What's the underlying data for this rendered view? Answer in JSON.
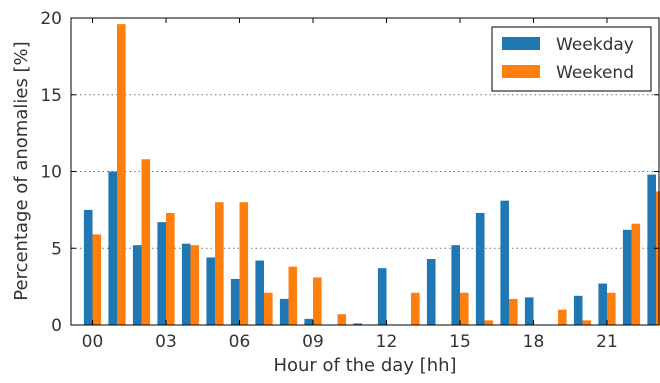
{
  "chart_data": {
    "type": "bar",
    "categories": [
      "00",
      "01",
      "02",
      "03",
      "04",
      "05",
      "06",
      "07",
      "08",
      "09",
      "10",
      "11",
      "12",
      "13",
      "14",
      "15",
      "16",
      "17",
      "18",
      "19",
      "20",
      "21",
      "22",
      "23"
    ],
    "x_tick_labels": [
      "00",
      "03",
      "06",
      "09",
      "12",
      "15",
      "18",
      "21"
    ],
    "xlabel": "Hour of the day [hh]",
    "ylabel": "Percentage of anomalies [%]",
    "ylim": [
      0,
      20
    ],
    "y_ticks": [
      "0",
      "5",
      "10",
      "15",
      "20"
    ],
    "grid": "horizontal dotted",
    "legend_position": "top-right",
    "series": [
      {
        "name": "Weekday",
        "color": "#1f77b4",
        "values": [
          7.5,
          10.0,
          5.2,
          6.7,
          5.3,
          4.4,
          3.0,
          4.2,
          1.7,
          0.4,
          0.0,
          0.1,
          3.7,
          0.0,
          4.3,
          5.2,
          7.3,
          8.1,
          1.8,
          0.0,
          1.9,
          2.7,
          6.2,
          9.8
        ]
      },
      {
        "name": "Weekend",
        "color": "#ff7f0e",
        "values": [
          5.9,
          19.6,
          10.8,
          7.3,
          5.2,
          8.0,
          8.0,
          2.1,
          3.8,
          3.1,
          0.7,
          0.0,
          0.0,
          2.1,
          0.0,
          2.1,
          0.3,
          1.7,
          0.0,
          1.0,
          0.3,
          2.1,
          6.6,
          8.7
        ]
      }
    ]
  }
}
